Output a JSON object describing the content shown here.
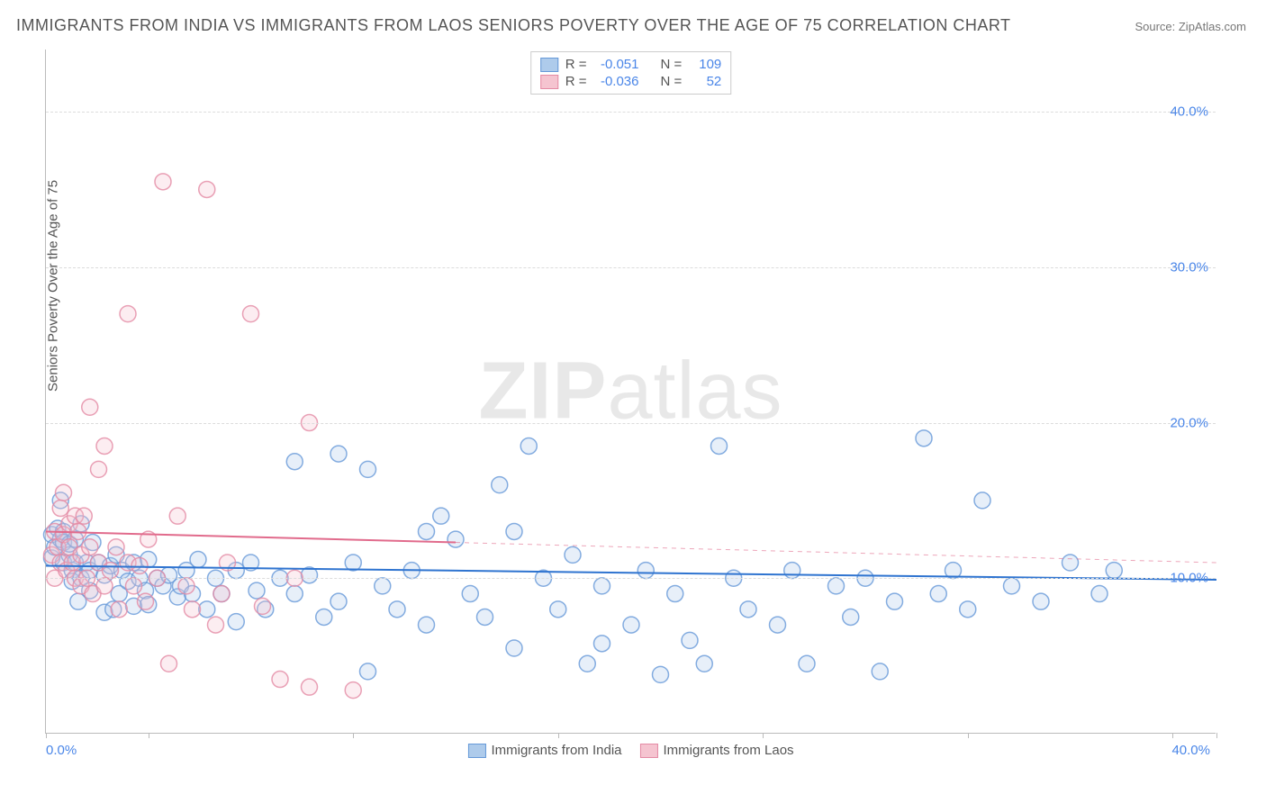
{
  "title": "IMMIGRANTS FROM INDIA VS IMMIGRANTS FROM LAOS SENIORS POVERTY OVER THE AGE OF 75 CORRELATION CHART",
  "source": "Source: ZipAtlas.com",
  "y_axis_label": "Seniors Poverty Over the Age of 75",
  "watermark_bold": "ZIP",
  "watermark_light": "atlas",
  "chart": {
    "type": "scatter",
    "xlim": [
      0,
      40
    ],
    "ylim": [
      0,
      44
    ],
    "x_tick_positions": [
      0,
      3.5,
      10.5,
      17.5,
      24.5,
      31.5,
      38.5,
      40
    ],
    "x_tick_labels": {
      "left": "0.0%",
      "right": "40.0%"
    },
    "y_ticks": [
      {
        "value": 10,
        "label": "10.0%"
      },
      {
        "value": 20,
        "label": "20.0%"
      },
      {
        "value": 30,
        "label": "30.0%"
      },
      {
        "value": 40,
        "label": "40.0%"
      }
    ],
    "grid_color": "#dcdcdc",
    "axis_color": "#bbbbbb",
    "background_color": "#ffffff",
    "marker_radius": 9,
    "fill_opacity": 0.3,
    "stroke_opacity": 0.8,
    "line_width": 2
  },
  "series": [
    {
      "name": "Immigrants from India",
      "key": "india",
      "color_fill": "#aecbeb",
      "color_stroke": "#6699d8",
      "color_line": "#2f74d0",
      "R": "-0.051",
      "N": "109",
      "trend": {
        "x1": 0,
        "y1": 10.8,
        "x2": 40,
        "y2": 9.9,
        "solid_until": 40
      },
      "points": [
        [
          0.2,
          12.8
        ],
        [
          0.2,
          11.3
        ],
        [
          0.3,
          12.0
        ],
        [
          0.4,
          13.2
        ],
        [
          0.5,
          12.5
        ],
        [
          0.5,
          15.0
        ],
        [
          0.6,
          11.0
        ],
        [
          0.6,
          13.0
        ],
        [
          0.6,
          12.3
        ],
        [
          0.8,
          11.5
        ],
        [
          0.8,
          12.2
        ],
        [
          0.9,
          10.5
        ],
        [
          0.9,
          9.8
        ],
        [
          1.0,
          12.5
        ],
        [
          1.0,
          11.0
        ],
        [
          1.1,
          8.5
        ],
        [
          1.2,
          10.0
        ],
        [
          1.2,
          13.5
        ],
        [
          1.4,
          11.0
        ],
        [
          1.5,
          9.2
        ],
        [
          1.5,
          10.5
        ],
        [
          1.6,
          12.3
        ],
        [
          1.8,
          11.0
        ],
        [
          2.0,
          10.2
        ],
        [
          2.0,
          7.8
        ],
        [
          2.2,
          10.8
        ],
        [
          2.3,
          8.0
        ],
        [
          2.4,
          11.5
        ],
        [
          2.5,
          9.0
        ],
        [
          2.6,
          10.5
        ],
        [
          2.8,
          9.8
        ],
        [
          3.0,
          11.0
        ],
        [
          3.0,
          8.2
        ],
        [
          3.2,
          10.0
        ],
        [
          3.4,
          9.2
        ],
        [
          3.5,
          11.2
        ],
        [
          3.5,
          8.3
        ],
        [
          3.8,
          10.0
        ],
        [
          4.0,
          9.5
        ],
        [
          4.2,
          10.2
        ],
        [
          4.5,
          8.8
        ],
        [
          4.6,
          9.5
        ],
        [
          4.8,
          10.5
        ],
        [
          5.0,
          9.0
        ],
        [
          5.2,
          11.2
        ],
        [
          5.5,
          8.0
        ],
        [
          5.8,
          10.0
        ],
        [
          6.0,
          9.0
        ],
        [
          6.5,
          7.2
        ],
        [
          6.5,
          10.5
        ],
        [
          7.0,
          11.0
        ],
        [
          7.2,
          9.2
        ],
        [
          7.5,
          8.0
        ],
        [
          8.0,
          10.0
        ],
        [
          8.5,
          9.0
        ],
        [
          8.5,
          17.5
        ],
        [
          9.0,
          10.2
        ],
        [
          9.5,
          7.5
        ],
        [
          10.0,
          8.5
        ],
        [
          10.0,
          18.0
        ],
        [
          10.5,
          11.0
        ],
        [
          11.0,
          4.0
        ],
        [
          11.0,
          17.0
        ],
        [
          11.5,
          9.5
        ],
        [
          12.0,
          8.0
        ],
        [
          12.5,
          10.5
        ],
        [
          13.0,
          7.0
        ],
        [
          13.0,
          13.0
        ],
        [
          13.5,
          14.0
        ],
        [
          14.0,
          12.5
        ],
        [
          14.5,
          9.0
        ],
        [
          15.0,
          7.5
        ],
        [
          15.5,
          16.0
        ],
        [
          16.0,
          13.0
        ],
        [
          16.0,
          5.5
        ],
        [
          16.5,
          18.5
        ],
        [
          17.0,
          10.0
        ],
        [
          17.5,
          8.0
        ],
        [
          18.0,
          11.5
        ],
        [
          18.5,
          4.5
        ],
        [
          19.0,
          9.5
        ],
        [
          19.0,
          5.8
        ],
        [
          20.0,
          7.0
        ],
        [
          20.5,
          10.5
        ],
        [
          21.0,
          3.8
        ],
        [
          21.5,
          9.0
        ],
        [
          22.0,
          6.0
        ],
        [
          22.5,
          4.5
        ],
        [
          23.0,
          18.5
        ],
        [
          23.5,
          10.0
        ],
        [
          24.0,
          8.0
        ],
        [
          25.0,
          7.0
        ],
        [
          25.5,
          10.5
        ],
        [
          26.0,
          4.5
        ],
        [
          27.0,
          9.5
        ],
        [
          27.5,
          7.5
        ],
        [
          28.0,
          10.0
        ],
        [
          28.5,
          4.0
        ],
        [
          29.0,
          8.5
        ],
        [
          30.0,
          19.0
        ],
        [
          30.5,
          9.0
        ],
        [
          31.0,
          10.5
        ],
        [
          31.5,
          8.0
        ],
        [
          32.0,
          15.0
        ],
        [
          33.0,
          9.5
        ],
        [
          34.0,
          8.5
        ],
        [
          35.0,
          11.0
        ],
        [
          36.0,
          9.0
        ],
        [
          36.5,
          10.5
        ]
      ]
    },
    {
      "name": "Immigrants from Laos",
      "key": "laos",
      "color_fill": "#f5c4d0",
      "color_stroke": "#e48aa4",
      "color_line": "#e16b8c",
      "R": "-0.036",
      "N": "52",
      "trend": {
        "x1": 0,
        "y1": 13.0,
        "x2": 40,
        "y2": 11.0,
        "solid_until": 14
      },
      "points": [
        [
          0.2,
          11.5
        ],
        [
          0.3,
          13.0
        ],
        [
          0.3,
          10.0
        ],
        [
          0.4,
          12.0
        ],
        [
          0.5,
          14.5
        ],
        [
          0.5,
          11.0
        ],
        [
          0.6,
          12.8
        ],
        [
          0.6,
          15.5
        ],
        [
          0.7,
          10.5
        ],
        [
          0.8,
          13.5
        ],
        [
          0.8,
          12.0
        ],
        [
          0.9,
          11.0
        ],
        [
          1.0,
          14.0
        ],
        [
          1.0,
          10.0
        ],
        [
          1.1,
          13.0
        ],
        [
          1.2,
          11.5
        ],
        [
          1.2,
          9.5
        ],
        [
          1.3,
          14.0
        ],
        [
          1.4,
          10.0
        ],
        [
          1.5,
          12.0
        ],
        [
          1.5,
          21.0
        ],
        [
          1.6,
          9.0
        ],
        [
          1.8,
          17.0
        ],
        [
          1.8,
          11.0
        ],
        [
          2.0,
          18.5
        ],
        [
          2.0,
          9.5
        ],
        [
          2.2,
          10.5
        ],
        [
          2.4,
          12.0
        ],
        [
          2.5,
          8.0
        ],
        [
          2.8,
          11.0
        ],
        [
          2.8,
          27.0
        ],
        [
          3.0,
          9.5
        ],
        [
          3.2,
          10.8
        ],
        [
          3.4,
          8.5
        ],
        [
          3.5,
          12.5
        ],
        [
          3.8,
          10.0
        ],
        [
          4.0,
          35.5
        ],
        [
          4.2,
          4.5
        ],
        [
          4.5,
          14.0
        ],
        [
          4.8,
          9.5
        ],
        [
          5.0,
          8.0
        ],
        [
          5.5,
          35.0
        ],
        [
          5.8,
          7.0
        ],
        [
          6.0,
          9.0
        ],
        [
          6.2,
          11.0
        ],
        [
          7.0,
          27.0
        ],
        [
          7.4,
          8.2
        ],
        [
          8.0,
          3.5
        ],
        [
          8.5,
          10.0
        ],
        [
          9.0,
          3.0
        ],
        [
          9.0,
          20.0
        ],
        [
          10.5,
          2.8
        ]
      ]
    }
  ],
  "legend_top": {
    "rows": [
      {
        "key": "india",
        "R_label": "R =",
        "N_label": "N ="
      },
      {
        "key": "laos",
        "R_label": "R =",
        "N_label": "N ="
      }
    ]
  }
}
